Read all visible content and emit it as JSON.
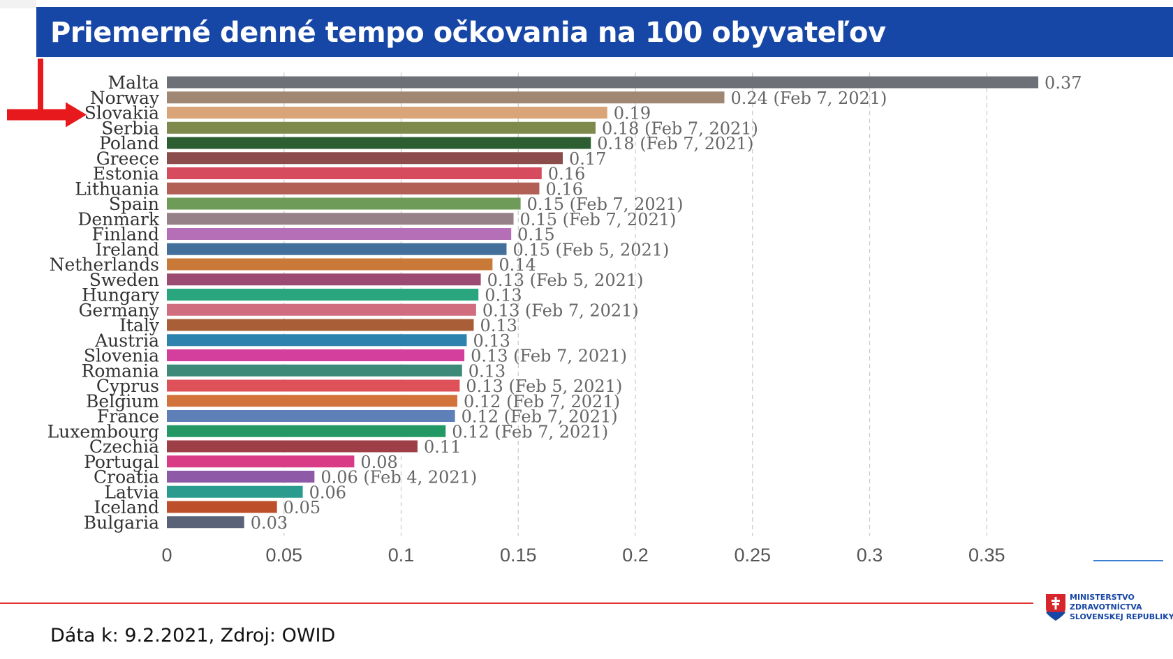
{
  "title": "Priemerné denné tempo očkovania na 100 obyvateľov",
  "source": "Dáta k: 9.2.2021, Zdroj: OWID",
  "ministry": {
    "line1": "MINISTERSTVO",
    "line2": "ZDRAVOTNÍCTVA",
    "line3": "SLOVENSKEJ REPUBLIKY"
  },
  "highlight_arrow_target": "Slovakia",
  "colors": {
    "title_bg": "#1747a6",
    "arrow": "#e8191c",
    "footer_line": "#e03030"
  },
  "chart_data": {
    "type": "bar",
    "orientation": "horizontal",
    "title": "",
    "xlabel": "",
    "ylabel": "",
    "xlim": [
      0,
      0.37
    ],
    "xticks": [
      0,
      0.05,
      0.1,
      0.15,
      0.2,
      0.25,
      0.3,
      0.35
    ],
    "xtick_labels": [
      "0",
      "0.05",
      "0.1",
      "0.15",
      "0.2",
      "0.25",
      "0.3",
      "0.35"
    ],
    "grid": "vertical dashed",
    "categories": [
      "Malta",
      "Norway",
      "Slovakia",
      "Serbia",
      "Poland",
      "Greece",
      "Estonia",
      "Lithuania",
      "Spain",
      "Denmark",
      "Finland",
      "Ireland",
      "Netherlands",
      "Sweden",
      "Hungary",
      "Germany",
      "Italy",
      "Austria",
      "Slovenia",
      "Romania",
      "Cyprus",
      "Belgium",
      "France",
      "Luxembourg",
      "Czechia",
      "Portugal",
      "Croatia",
      "Latvia",
      "Iceland",
      "Bulgaria"
    ],
    "values": [
      0.372,
      0.238,
      0.188,
      0.183,
      0.181,
      0.169,
      0.16,
      0.159,
      0.151,
      0.148,
      0.147,
      0.145,
      0.139,
      0.134,
      0.133,
      0.132,
      0.131,
      0.128,
      0.127,
      0.126,
      0.125,
      0.124,
      0.123,
      0.119,
      0.107,
      0.08,
      0.063,
      0.058,
      0.047,
      0.033
    ],
    "labels": [
      "0.37",
      "0.24 (Feb 7, 2021)",
      "0.19",
      "0.18 (Feb 7, 2021)",
      "0.18 (Feb 7, 2021)",
      "0.17",
      "0.16",
      "0.16",
      "0.15 (Feb 7, 2021)",
      "0.15 (Feb 7, 2021)",
      "0.15",
      "0.15 (Feb 5, 2021)",
      "0.14",
      "0.13 (Feb 5, 2021)",
      "0.13",
      "0.13 (Feb 7, 2021)",
      "0.13",
      "0.13",
      "0.13 (Feb 7, 2021)",
      "0.13",
      "0.13 (Feb 5, 2021)",
      "0.12 (Feb 7, 2021)",
      "0.12 (Feb 7, 2021)",
      "0.12 (Feb 7, 2021)",
      "0.11",
      "0.08",
      "0.06 (Feb 4, 2021)",
      "0.06",
      "0.05",
      "0.03"
    ],
    "bar_colors": [
      "#6e7077",
      "#a08774",
      "#d9a477",
      "#7e8a4c",
      "#2c5e32",
      "#8b4c4c",
      "#d64b5d",
      "#b25f56",
      "#6f9b59",
      "#978188",
      "#b46fb7",
      "#43709a",
      "#c97a39",
      "#9b4a72",
      "#2aa67f",
      "#d06d7e",
      "#a95e38",
      "#2d82ae",
      "#d43f9e",
      "#3d8a79",
      "#de5158",
      "#d1733b",
      "#5f7fb8",
      "#239764",
      "#9e3e46",
      "#d93b87",
      "#8e5aa8",
      "#2a9b8d",
      "#be4f2b",
      "#5a6278"
    ]
  }
}
